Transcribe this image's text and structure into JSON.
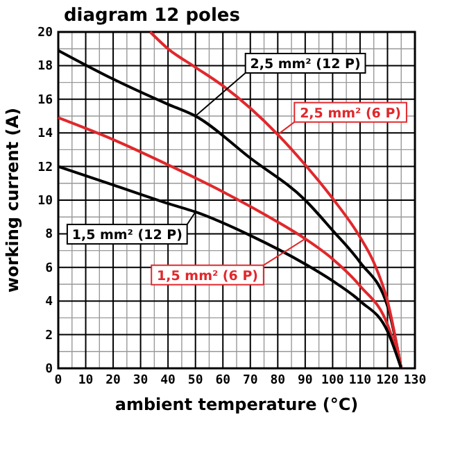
{
  "chart_data": {
    "type": "line",
    "title": "diagram 12 poles",
    "xlabel": "ambient temperature (°C)",
    "ylabel": "working current (A)",
    "xlim": [
      0,
      130
    ],
    "xticks": [
      0,
      10,
      20,
      30,
      40,
      50,
      60,
      70,
      80,
      90,
      100,
      110,
      120,
      130
    ],
    "ylim": [
      0,
      20
    ],
    "yticks": [
      0,
      2,
      4,
      6,
      8,
      10,
      12,
      14,
      16,
      18,
      20
    ],
    "grid": true,
    "marker": "none",
    "line_style": "solid",
    "series": [
      {
        "name": "2,5 mm² (12 P)",
        "color": "#000000",
        "x": [
          0,
          20,
          40,
          50,
          70,
          90,
          100,
          110,
          120,
          125
        ],
        "values": [
          18.9,
          17.2,
          15.7,
          15.0,
          12.5,
          10.0,
          8.2,
          6.3,
          3.7,
          0
        ]
      },
      {
        "name": "2,5 mm² (6 P)",
        "color": "#e0282c",
        "x": [
          33.5,
          40,
          50,
          60,
          80,
          90,
          100,
          110,
          115,
          120,
          125
        ],
        "values": [
          20,
          19,
          17.9,
          16.8,
          13.9,
          12.1,
          10.1,
          7.8,
          6.3,
          4.0,
          0
        ]
      },
      {
        "name": "1,5 mm² (6 P)",
        "color": "#e0282c",
        "x": [
          0,
          20,
          40,
          60,
          80,
          90,
          100,
          110,
          120,
          125
        ],
        "values": [
          14.9,
          13.6,
          12.1,
          10.5,
          8.7,
          7.7,
          6.5,
          4.9,
          2.6,
          0
        ]
      },
      {
        "name": "1,5 mm² (12 P)",
        "color": "#000000",
        "x": [
          0,
          20,
          40,
          50,
          70,
          90,
          100,
          110,
          120,
          125
        ],
        "values": [
          12,
          10.9,
          9.8,
          9.3,
          7.9,
          6.2,
          5.2,
          4.0,
          2.2,
          0
        ]
      }
    ]
  }
}
